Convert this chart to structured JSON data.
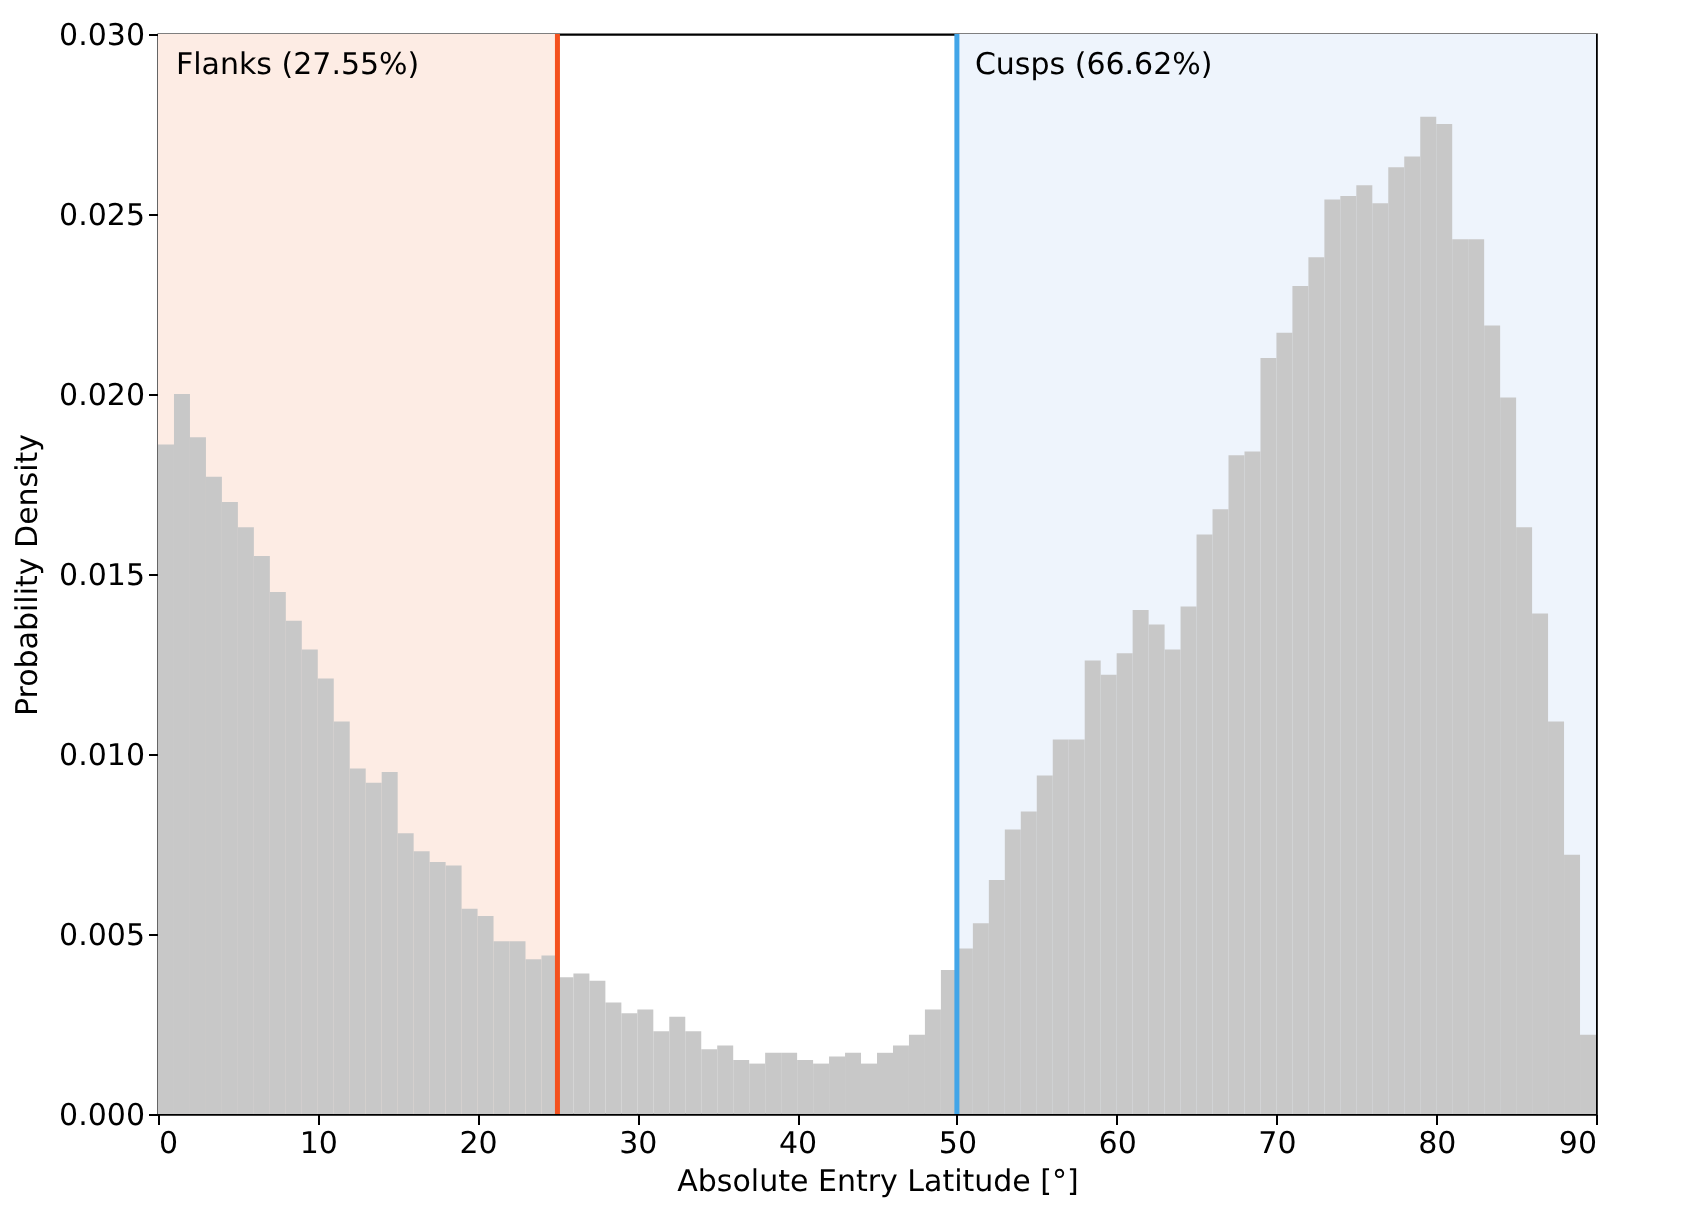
{
  "chart_data": {
    "type": "histogram",
    "xlabel": "Absolute Entry Latitude [°]",
    "ylabel": "Probability Density",
    "bins": [
      0,
      1,
      2,
      3,
      4,
      5,
      6,
      7,
      8,
      9,
      10,
      11,
      12,
      13,
      14,
      15,
      16,
      17,
      18,
      19,
      20,
      21,
      22,
      23,
      24,
      25,
      26,
      27,
      28,
      29,
      30,
      31,
      32,
      33,
      34,
      35,
      36,
      37,
      38,
      39,
      40,
      41,
      42,
      43,
      44,
      45,
      46,
      47,
      48,
      49,
      50,
      51,
      52,
      53,
      54,
      55,
      56,
      57,
      58,
      59,
      60,
      61,
      62,
      63,
      64,
      65,
      66,
      67,
      68,
      69,
      70,
      71,
      72,
      73,
      74,
      75,
      76,
      77,
      78,
      79,
      80,
      81,
      82,
      83,
      84,
      85,
      86,
      87,
      88,
      89,
      90
    ],
    "values": [
      0.0186,
      0.02,
      0.0188,
      0.0177,
      0.017,
      0.0163,
      0.0155,
      0.0145,
      0.0137,
      0.0129,
      0.0121,
      0.0109,
      0.0096,
      0.0092,
      0.0095,
      0.0078,
      0.0073,
      0.007,
      0.0069,
      0.0057,
      0.0055,
      0.0048,
      0.0048,
      0.0043,
      0.0044,
      0.0038,
      0.0039,
      0.0037,
      0.0031,
      0.0028,
      0.0029,
      0.0023,
      0.0027,
      0.0023,
      0.0018,
      0.0019,
      0.0015,
      0.0014,
      0.0017,
      0.0017,
      0.0015,
      0.0014,
      0.0016,
      0.0017,
      0.0014,
      0.0017,
      0.0019,
      0.0022,
      0.0029,
      0.004,
      0.0046,
      0.0053,
      0.0065,
      0.0079,
      0.0084,
      0.0094,
      0.0104,
      0.0104,
      0.0126,
      0.0122,
      0.0128,
      0.014,
      0.0136,
      0.0129,
      0.0141,
      0.0161,
      0.0168,
      0.0183,
      0.0184,
      0.021,
      0.0217,
      0.023,
      0.0238,
      0.0254,
      0.0255,
      0.0258,
      0.0253,
      0.0263,
      0.0266,
      0.0277,
      0.0275,
      0.0243,
      0.0243,
      0.0219,
      0.0199,
      0.0163,
      0.0139,
      0.0109,
      0.0072,
      0.0022
    ],
    "color": "#c8c8c8",
    "xlim": [
      0,
      90
    ],
    "xticks": [
      0,
      10,
      20,
      30,
      40,
      50,
      60,
      70,
      80,
      90
    ],
    "ylim": [
      0,
      0.03
    ],
    "yticks": [
      {
        "value": 0,
        "label": "0.000"
      },
      {
        "value": 0.005,
        "label": "0.005"
      },
      {
        "value": 0.01,
        "label": "0.010"
      },
      {
        "value": 0.015,
        "label": "0.015"
      },
      {
        "value": 0.02,
        "label": "0.020"
      },
      {
        "value": 0.025,
        "label": "0.025"
      },
      {
        "value": 0.03,
        "label": "0.030"
      }
    ],
    "bands": [
      {
        "axis": "x",
        "from": 0,
        "to": 25,
        "label": "Flanks (27.55%)",
        "color": "#fdece4"
      },
      {
        "axis": "x",
        "from": 50,
        "to": 90,
        "label": "Cusps (66.62%)",
        "color": "#eef4fc"
      }
    ],
    "ref_lines": [
      {
        "axis": "x",
        "value": 25,
        "color": "#f4511e"
      },
      {
        "axis": "x",
        "value": 50,
        "color": "#42a5e8"
      }
    ],
    "grid": false
  }
}
